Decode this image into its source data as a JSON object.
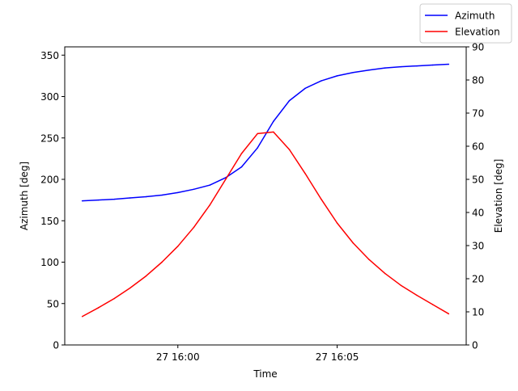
{
  "chart_data": {
    "type": "line",
    "xlabel": "Time",
    "x_ticks": [
      "27 16:00",
      "27 16:05"
    ],
    "x_minutes_range": [
      -3.55,
      9.05
    ],
    "x_tick_minutes": [
      0,
      5
    ],
    "left_axis": {
      "ylabel": "Azimuth [deg]",
      "ylim": [
        0,
        360
      ],
      "ticks": [
        0,
        50,
        100,
        150,
        200,
        250,
        300,
        350
      ]
    },
    "right_axis": {
      "ylabel": "Elevation [deg]",
      "ylim": [
        0,
        90
      ],
      "ticks": [
        0,
        10,
        20,
        30,
        40,
        50,
        60,
        70,
        80,
        90
      ]
    },
    "legend": {
      "placement": "top-right",
      "entries": [
        "Azimuth",
        "Elevation"
      ]
    },
    "x_minutes": [
      -3,
      -2.5,
      -2,
      -1.5,
      -1,
      -0.5,
      0,
      0.5,
      1,
      1.5,
      2,
      2.5,
      3,
      3.5,
      4,
      4.5,
      5,
      5.5,
      6,
      6.5,
      7,
      7.5,
      8,
      8.5
    ],
    "series": [
      {
        "name": "Azimuth",
        "axis": "left",
        "color": "#0000ff",
        "values": [
          174,
          175,
          176,
          177.5,
          179,
          181,
          184,
          188,
          193,
          202,
          215,
          238,
          270,
          295,
          310,
          319,
          325,
          329,
          332,
          334.5,
          336,
          337,
          338,
          339
        ]
      },
      {
        "name": "Elevation",
        "axis": "right",
        "color": "#ff0000",
        "values": [
          8.6,
          11.2,
          14,
          17.2,
          20.8,
          25,
          29.8,
          35.5,
          42.2,
          50,
          57.8,
          63.8,
          64.3,
          59,
          51.7,
          44,
          36.8,
          30.8,
          25.8,
          21.6,
          18,
          15,
          12.2,
          9.4
        ]
      }
    ]
  }
}
